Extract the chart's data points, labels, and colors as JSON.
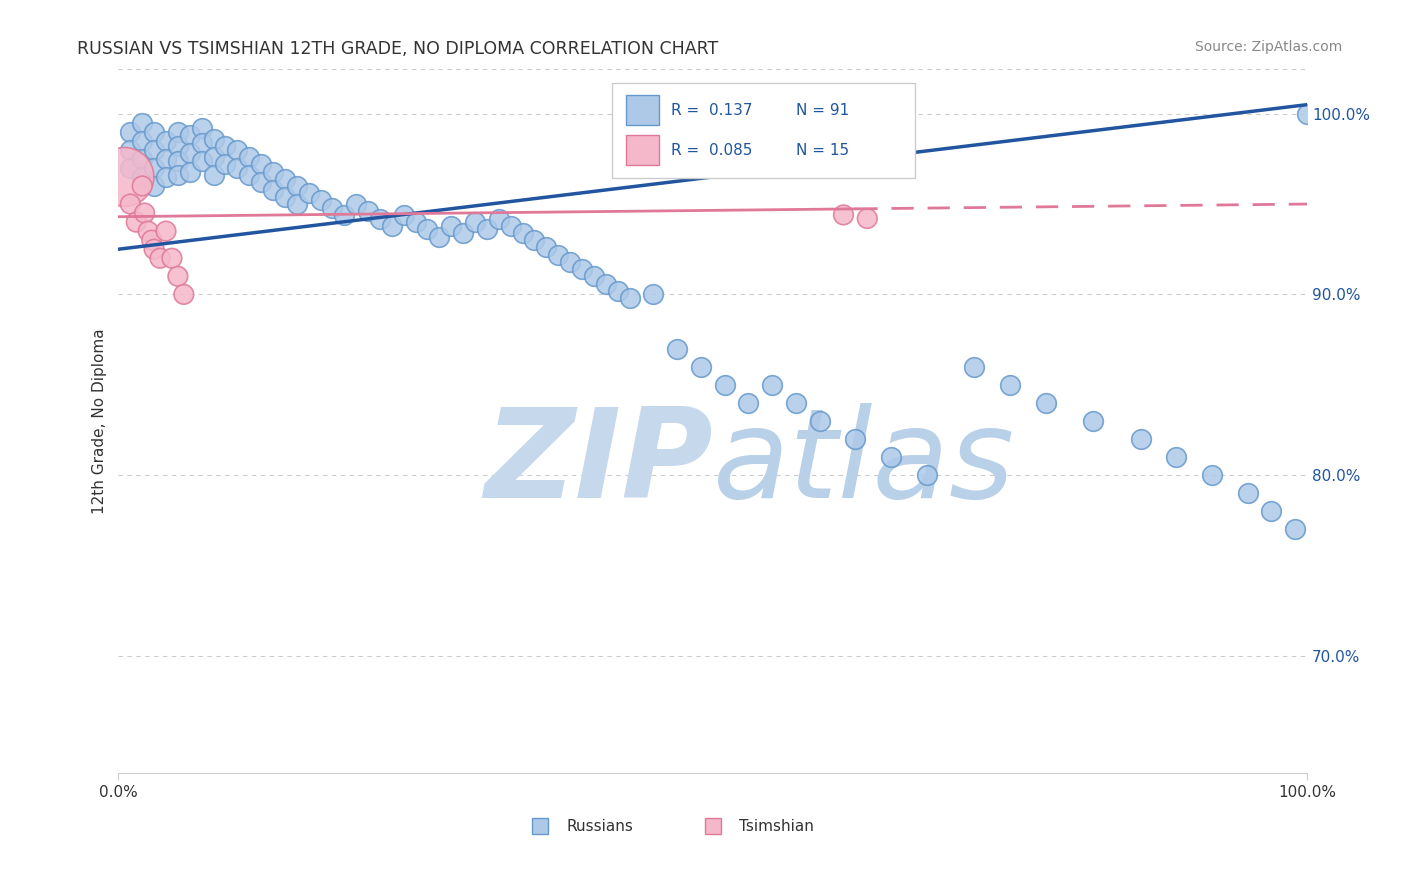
{
  "title": "RUSSIAN VS TSIMSHIAN 12TH GRADE, NO DIPLOMA CORRELATION CHART",
  "source": "Source: ZipAtlas.com",
  "ylabel": "12th Grade, No Diploma",
  "xlim": [
    0.0,
    1.0
  ],
  "ylim": [
    0.635,
    1.025
  ],
  "yticks": [
    0.7,
    0.8,
    0.9,
    1.0
  ],
  "ytick_labels": [
    "70.0%",
    "80.0%",
    "90.0%",
    "100.0%"
  ],
  "xticks": [
    0.0,
    1.0
  ],
  "xtick_labels": [
    "0.0%",
    "100.0%"
  ],
  "r_russian": 0.137,
  "n_russian": 91,
  "r_tsimshian": 0.085,
  "n_tsimshian": 15,
  "russian_color": "#aec9e8",
  "russian_edge": "#6699cc",
  "tsimshian_color": "#f5b8cb",
  "tsimshian_edge": "#e07898",
  "line_russian_color": "#2255a0",
  "line_tsimshian_color": "#e07898",
  "watermark_color": "#d0e4f5",
  "legend_text_color": "#2255a0",
  "dot_size": 200,
  "line_rus_x0": 0.0,
  "line_rus_y0": 0.925,
  "line_rus_x1": 1.0,
  "line_rus_y1": 1.005,
  "line_tsim_x0": 0.0,
  "line_tsim_y0": 0.943,
  "line_tsim_x1": 1.0,
  "line_tsim_y1": 0.95,
  "rus_x": [
    0.01,
    0.01,
    0.01,
    0.02,
    0.02,
    0.02,
    0.02,
    0.03,
    0.03,
    0.03,
    0.03,
    0.04,
    0.04,
    0.04,
    0.05,
    0.05,
    0.05,
    0.05,
    0.06,
    0.06,
    0.06,
    0.07,
    0.07,
    0.07,
    0.08,
    0.08,
    0.08,
    0.09,
    0.09,
    0.1,
    0.1,
    0.11,
    0.11,
    0.12,
    0.12,
    0.13,
    0.13,
    0.14,
    0.14,
    0.15,
    0.15,
    0.16,
    0.17,
    0.18,
    0.19,
    0.2,
    0.21,
    0.22,
    0.23,
    0.24,
    0.25,
    0.26,
    0.27,
    0.28,
    0.29,
    0.3,
    0.31,
    0.32,
    0.33,
    0.34,
    0.35,
    0.36,
    0.37,
    0.38,
    0.39,
    0.4,
    0.41,
    0.42,
    0.43,
    0.45,
    0.47,
    0.49,
    0.51,
    0.53,
    0.55,
    0.57,
    0.59,
    0.62,
    0.65,
    0.68,
    0.72,
    0.75,
    0.78,
    0.82,
    0.86,
    0.89,
    0.92,
    0.95,
    0.97,
    0.99,
    1.0
  ],
  "rus_y": [
    0.99,
    0.98,
    0.97,
    0.995,
    0.985,
    0.975,
    0.965,
    0.99,
    0.98,
    0.97,
    0.96,
    0.985,
    0.975,
    0.965,
    0.99,
    0.982,
    0.974,
    0.966,
    0.988,
    0.978,
    0.968,
    0.992,
    0.984,
    0.974,
    0.986,
    0.976,
    0.966,
    0.982,
    0.972,
    0.98,
    0.97,
    0.976,
    0.966,
    0.972,
    0.962,
    0.968,
    0.958,
    0.964,
    0.954,
    0.96,
    0.95,
    0.956,
    0.952,
    0.948,
    0.944,
    0.95,
    0.946,
    0.942,
    0.938,
    0.944,
    0.94,
    0.936,
    0.932,
    0.938,
    0.934,
    0.94,
    0.936,
    0.942,
    0.938,
    0.934,
    0.93,
    0.926,
    0.922,
    0.918,
    0.914,
    0.91,
    0.906,
    0.902,
    0.898,
    0.9,
    0.87,
    0.86,
    0.85,
    0.84,
    0.85,
    0.84,
    0.83,
    0.82,
    0.81,
    0.8,
    0.86,
    0.85,
    0.84,
    0.83,
    0.82,
    0.81,
    0.8,
    0.79,
    0.78,
    0.77,
    1.0
  ],
  "tsim_x": [
    0.005,
    0.01,
    0.015,
    0.02,
    0.022,
    0.025,
    0.028,
    0.03,
    0.035,
    0.04,
    0.045,
    0.05,
    0.055,
    0.61,
    0.63
  ],
  "tsim_y": [
    0.965,
    0.95,
    0.94,
    0.96,
    0.945,
    0.935,
    0.93,
    0.925,
    0.92,
    0.935,
    0.92,
    0.91,
    0.9,
    0.944,
    0.942
  ],
  "tsim_large_idx": 0,
  "tsim_large_size": 1800
}
